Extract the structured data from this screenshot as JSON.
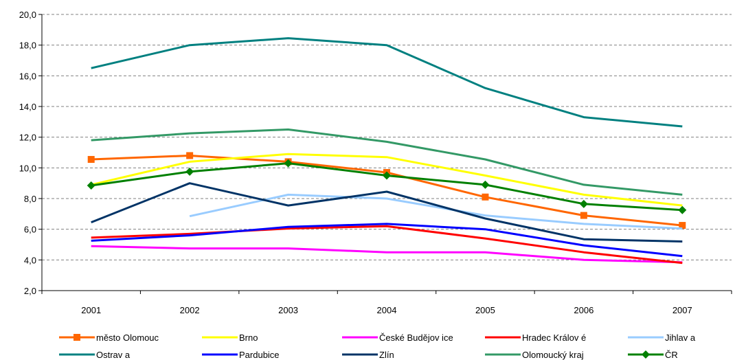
{
  "chart_data": {
    "type": "line",
    "categories": [
      "2001",
      "2002",
      "2003",
      "2004",
      "2005",
      "2006",
      "2007"
    ],
    "ylim": [
      2.0,
      20.0
    ],
    "ytick_labels": [
      "2,0",
      "4,0",
      "6,0",
      "8,0",
      "10,0",
      "12,0",
      "14,0",
      "16,0",
      "18,0",
      "20,0"
    ],
    "grid": "horizontal dashed",
    "legend_position": "bottom",
    "series": [
      {
        "name": "město Olomouc",
        "color": "#FF6600",
        "marker": "square",
        "values": [
          10.55,
          10.8,
          10.4,
          9.7,
          8.1,
          6.9,
          6.25
        ]
      },
      {
        "name": "Brno",
        "color": "#FFFF00",
        "marker": "none",
        "values": [
          8.9,
          10.4,
          10.9,
          10.7,
          9.5,
          8.25,
          7.55
        ]
      },
      {
        "name": "České Budějov ice",
        "color": "#FF00FF",
        "marker": "none",
        "values": [
          4.9,
          4.75,
          4.75,
          4.5,
          4.5,
          4.0,
          3.85
        ]
      },
      {
        "name": "Hradec Králov é",
        "color": "#FF0000",
        "marker": "none",
        "values": [
          5.45,
          5.7,
          6.05,
          6.2,
          5.4,
          4.5,
          3.8
        ]
      },
      {
        "name": "Jihlav a",
        "color": "#99CCFF",
        "marker": "none",
        "values": [
          null,
          6.85,
          8.25,
          8.0,
          6.9,
          6.35,
          6.05
        ]
      },
      {
        "name": "Ostrav a",
        "color": "#008080",
        "marker": "none",
        "values": [
          16.5,
          18.0,
          18.45,
          18.0,
          15.2,
          13.3,
          12.7
        ]
      },
      {
        "name": "Pardubice",
        "color": "#0000FF",
        "marker": "none",
        "values": [
          5.25,
          5.6,
          6.15,
          6.35,
          6.0,
          4.95,
          4.25
        ]
      },
      {
        "name": "Zlín",
        "color": "#003366",
        "marker": "none",
        "values": [
          6.45,
          9.0,
          7.55,
          8.45,
          6.7,
          5.35,
          5.2
        ]
      },
      {
        "name": "Olomoucký kraj",
        "color": "#339966",
        "marker": "none",
        "values": [
          11.8,
          12.25,
          12.5,
          11.7,
          10.55,
          8.9,
          8.25
        ]
      },
      {
        "name": "ČR",
        "color": "#008000",
        "marker": "diamond",
        "values": [
          8.85,
          9.75,
          10.3,
          9.5,
          8.9,
          7.65,
          7.25
        ]
      }
    ]
  }
}
